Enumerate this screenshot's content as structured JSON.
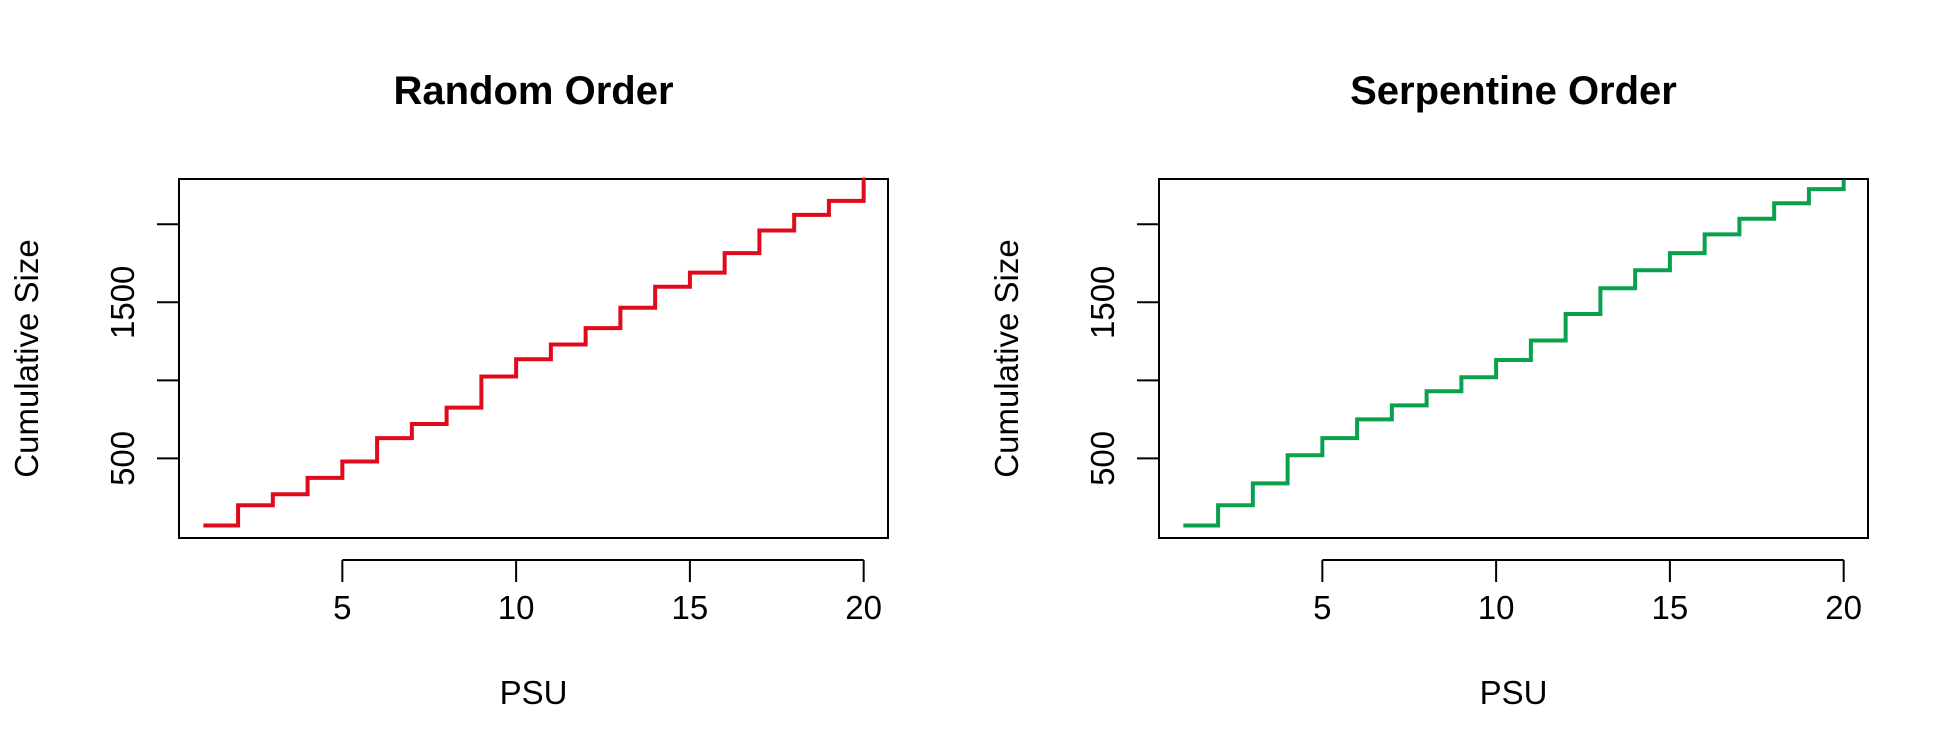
{
  "chart_data": [
    {
      "type": "line",
      "step": true,
      "title": "Random Order",
      "xlabel": "PSU",
      "ylabel": "Cumulative Size",
      "xlim": [
        0.3,
        20.7
      ],
      "ylim": [
        -10,
        2290
      ],
      "xticks": [
        5,
        10,
        15,
        20
      ],
      "yticks": [
        500,
        1000,
        1500,
        2000
      ],
      "ytick_labels": [
        "500",
        "",
        "1500",
        ""
      ],
      "grid": false,
      "series": [
        {
          "color": "#DF0B1C",
          "x": [
            1,
            2,
            3,
            4,
            5,
            6,
            7,
            8,
            9,
            10,
            11,
            12,
            13,
            14,
            15,
            16,
            17,
            18,
            19,
            20
          ],
          "y": [
            70,
            200,
            270,
            375,
            480,
            630,
            720,
            825,
            1025,
            1135,
            1230,
            1335,
            1465,
            1600,
            1690,
            1815,
            1960,
            2060,
            2150,
            2300
          ]
        }
      ]
    },
    {
      "type": "line",
      "step": true,
      "title": "Serpentine Order",
      "xlabel": "PSU",
      "ylabel": "Cumulative Size",
      "xlim": [
        0.3,
        20.7
      ],
      "ylim": [
        -10,
        2290
      ],
      "xticks": [
        5,
        10,
        15,
        20
      ],
      "yticks": [
        500,
        1000,
        1500,
        2000
      ],
      "ytick_labels": [
        "500",
        "",
        "1500",
        ""
      ],
      "grid": false,
      "series": [
        {
          "color": "#09A14D",
          "x": [
            1,
            2,
            3,
            4,
            5,
            6,
            7,
            8,
            9,
            10,
            11,
            12,
            13,
            14,
            15,
            16,
            17,
            18,
            19,
            20
          ],
          "y": [
            70,
            200,
            340,
            520,
            630,
            750,
            840,
            930,
            1020,
            1130,
            1255,
            1425,
            1590,
            1705,
            1815,
            1935,
            2035,
            2135,
            2225,
            2285
          ]
        }
      ]
    }
  ]
}
